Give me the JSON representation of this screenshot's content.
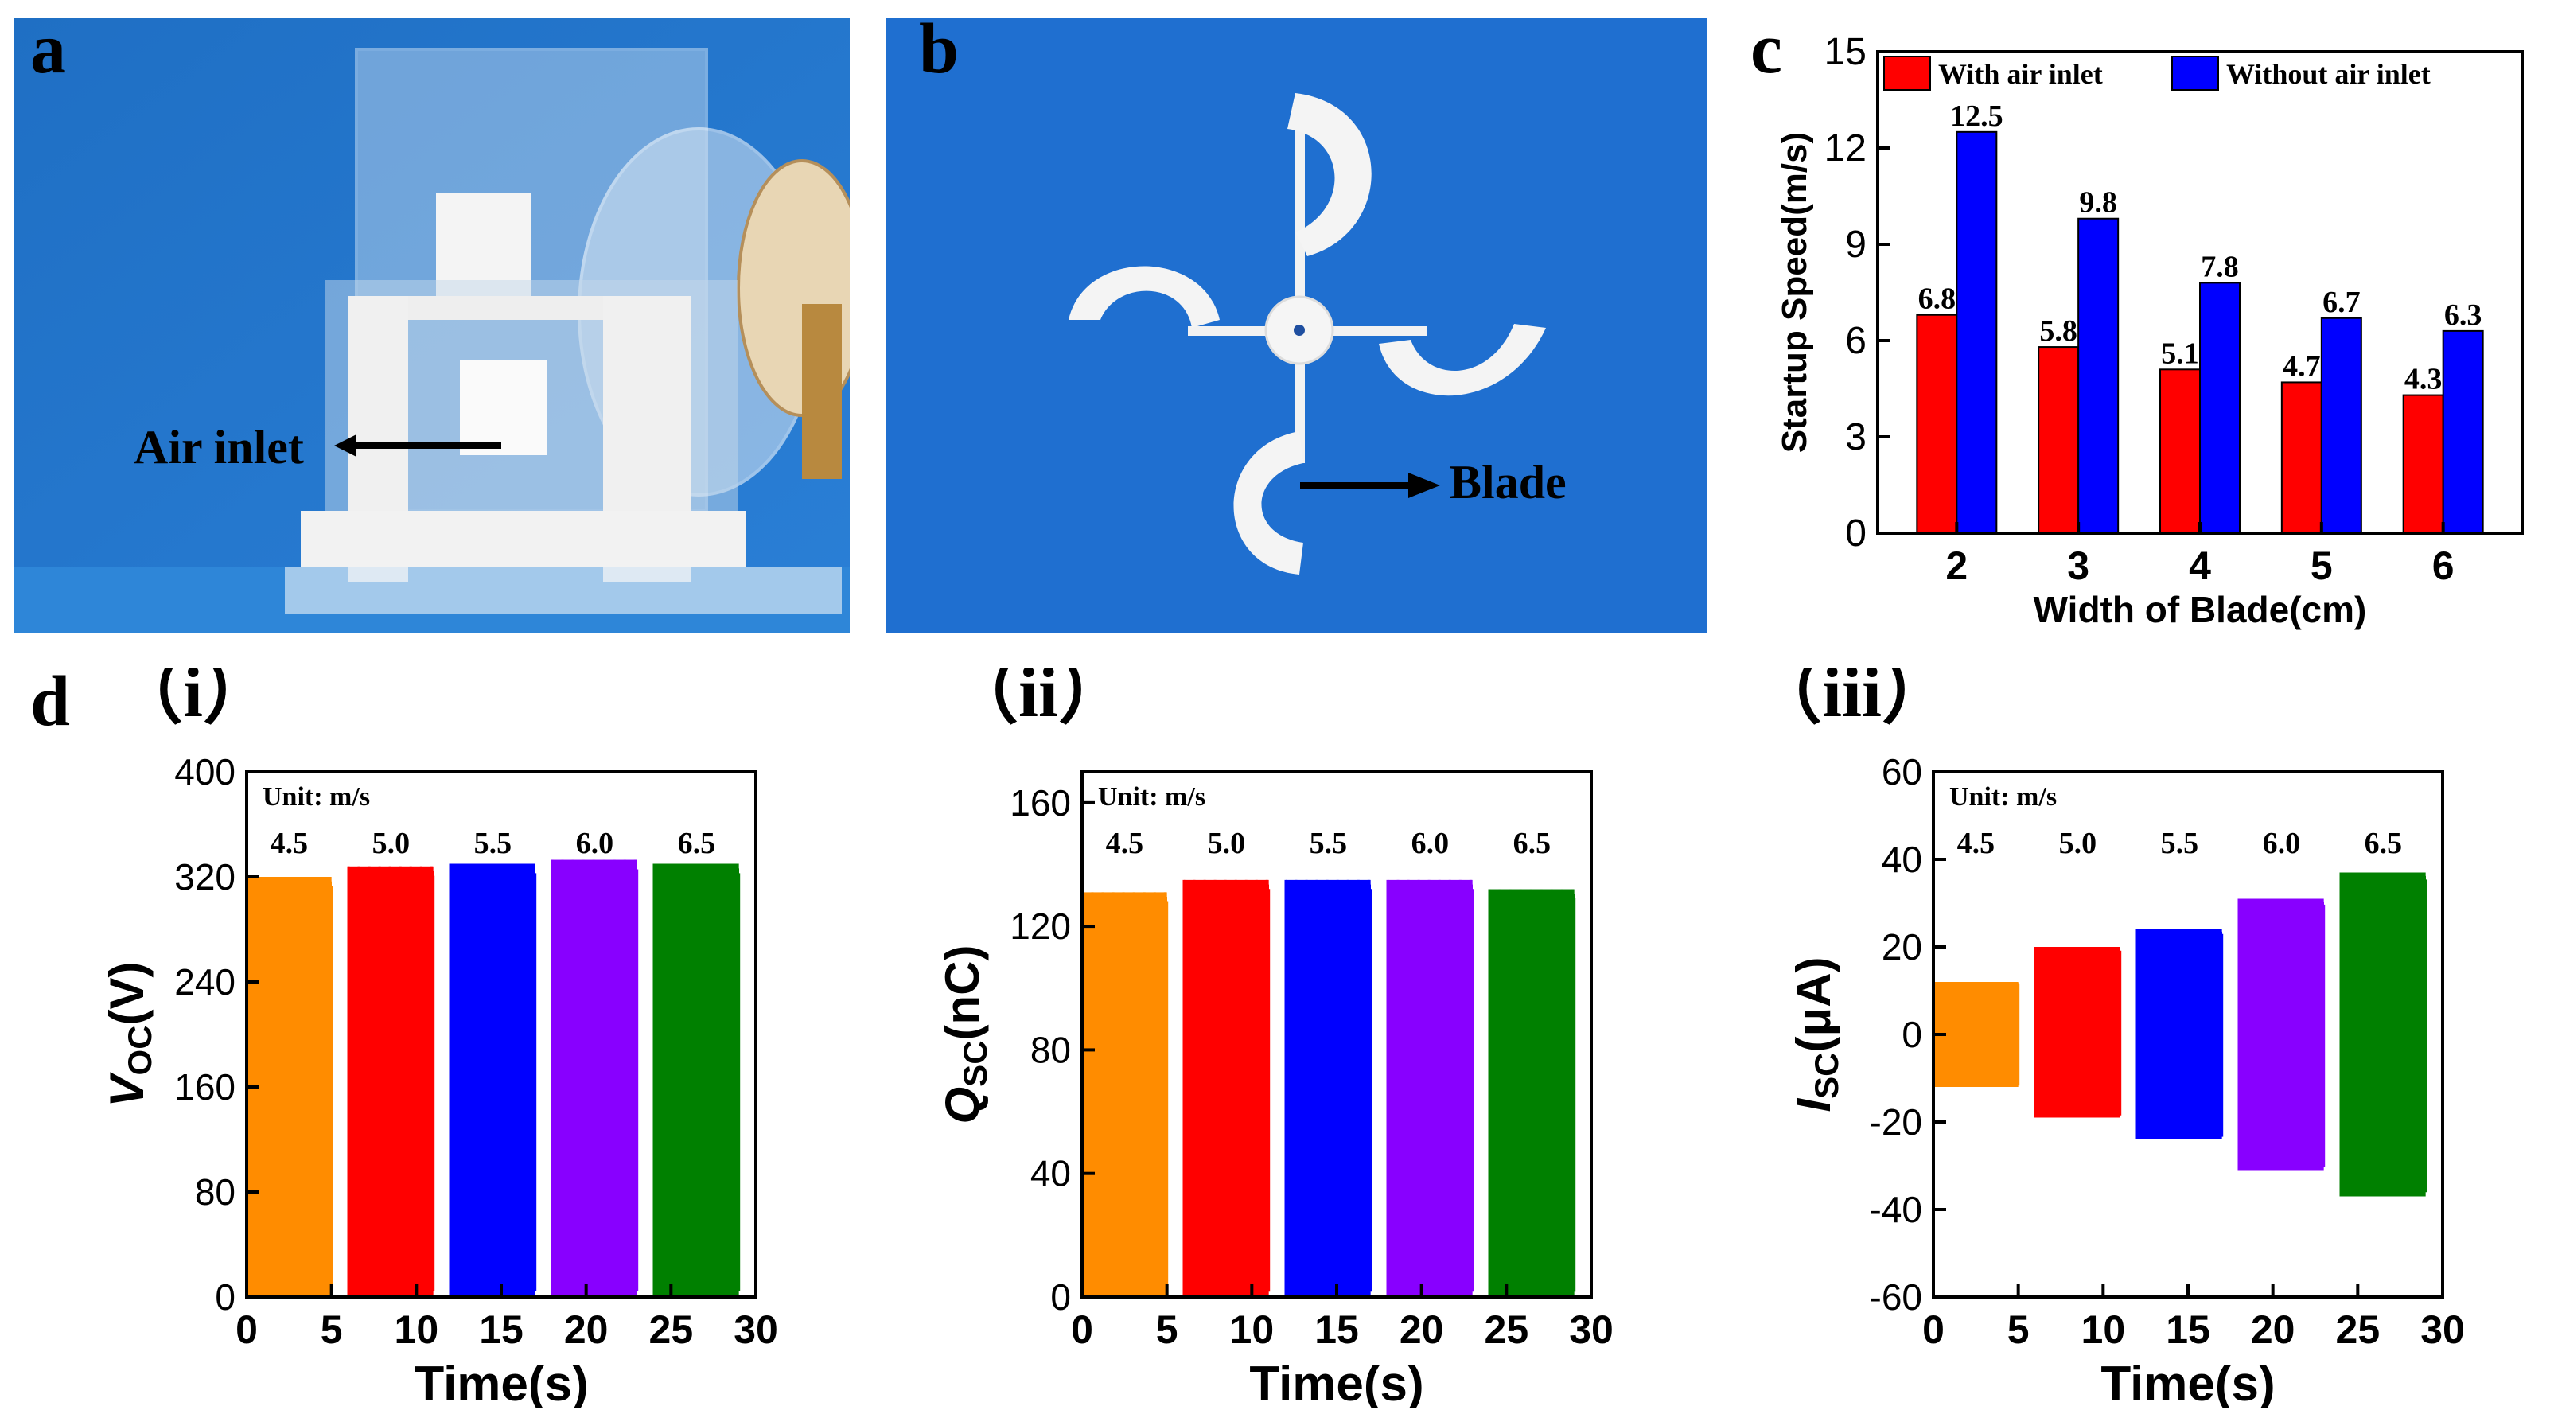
{
  "panel_labels": {
    "a": "a",
    "b": "b",
    "c": "c",
    "d": "d"
  },
  "photo_a": {
    "annotation": "Air inlet"
  },
  "photo_b": {
    "annotation": "Blade"
  },
  "colors": {
    "with_inlet": "#ff0000",
    "without_inlet": "#0000ff",
    "speed_series": [
      "#ff8c00",
      "#ff0000",
      "#0000ff",
      "#8800ff",
      "#008000"
    ]
  },
  "chart_data": [
    {
      "id": "c",
      "type": "bar",
      "title": "",
      "xlabel": "Width of Blade(cm)",
      "ylabel": "Startup Speed(m/s)",
      "categories": [
        "2",
        "3",
        "4",
        "5",
        "6"
      ],
      "ylim": [
        0,
        15
      ],
      "yticks": [
        "0",
        "3",
        "6",
        "9",
        "12",
        "15"
      ],
      "series": [
        {
          "name": "With air inlet",
          "values": [
            6.8,
            5.8,
            5.1,
            4.7,
            4.3
          ],
          "labels": [
            "6.8",
            "5.8",
            "5.1",
            "4.7",
            "4.3"
          ]
        },
        {
          "name": "Without air inlet",
          "values": [
            12.5,
            9.8,
            7.8,
            6.7,
            6.3
          ],
          "labels": [
            "12.5",
            "9.8",
            "7.8",
            "6.7",
            "6.3"
          ]
        }
      ],
      "legend": "top"
    },
    {
      "id": "d-i",
      "type": "area",
      "panel_tag": "（i）",
      "xlabel": "Time(s)",
      "ylabel_main": "V",
      "ylabel_sub": "OC",
      "ylabel_unit": "(V)",
      "xlim": [
        0,
        30
      ],
      "xticks": [
        "0",
        "5",
        "10",
        "15",
        "20",
        "25",
        "30"
      ],
      "ylim": [
        0,
        400
      ],
      "yticks": [
        "0",
        "80",
        "160",
        "240",
        "320",
        "400"
      ],
      "unit_note": "Unit:  m/s",
      "segments": [
        {
          "speed": "4.5",
          "x": [
            0,
            5
          ],
          "low": 0,
          "high": 320
        },
        {
          "speed": "5.0",
          "x": [
            6,
            11
          ],
          "low": 0,
          "high": 328
        },
        {
          "speed": "5.5",
          "x": [
            12,
            17
          ],
          "low": 0,
          "high": 330
        },
        {
          "speed": "6.0",
          "x": [
            18,
            23
          ],
          "low": 0,
          "high": 333
        },
        {
          "speed": "6.5",
          "x": [
            24,
            29
          ],
          "low": 0,
          "high": 330
        }
      ]
    },
    {
      "id": "d-ii",
      "type": "area",
      "panel_tag": "（ii）",
      "xlabel": "Time(s)",
      "ylabel_main": "Q",
      "ylabel_sub": "SC",
      "ylabel_unit": "(nC)",
      "xlim": [
        0,
        30
      ],
      "xticks": [
        "0",
        "5",
        "10",
        "15",
        "20",
        "25",
        "30"
      ],
      "ylim": [
        0,
        170
      ],
      "yticks": [
        "0",
        "40",
        "80",
        "120",
        "160"
      ],
      "unit_note": "Unit:  m/s",
      "segments": [
        {
          "speed": "4.5",
          "x": [
            0,
            5
          ],
          "low": 0,
          "high": 131
        },
        {
          "speed": "5.0",
          "x": [
            6,
            11
          ],
          "low": 0,
          "high": 135
        },
        {
          "speed": "5.5",
          "x": [
            12,
            17
          ],
          "low": 0,
          "high": 135
        },
        {
          "speed": "6.0",
          "x": [
            18,
            23
          ],
          "low": 0,
          "high": 135
        },
        {
          "speed": "6.5",
          "x": [
            24,
            29
          ],
          "low": 0,
          "high": 132
        }
      ]
    },
    {
      "id": "d-iii",
      "type": "area",
      "panel_tag": "（iii）",
      "xlabel": "Time(s)",
      "ylabel_main": "I",
      "ylabel_sub": "SC",
      "ylabel_unit": "(μA)",
      "xlim": [
        0,
        30
      ],
      "xticks": [
        "0",
        "5",
        "10",
        "15",
        "20",
        "25",
        "30"
      ],
      "ylim": [
        -60,
        60
      ],
      "yticks": [
        "-60",
        "-40",
        "-20",
        "0",
        "20",
        "40",
        "60"
      ],
      "unit_note": "Unit:  m/s",
      "segments": [
        {
          "speed": "4.5",
          "x": [
            0,
            5
          ],
          "low": -12,
          "high": 12
        },
        {
          "speed": "5.0",
          "x": [
            6,
            11
          ],
          "low": -19,
          "high": 20
        },
        {
          "speed": "5.5",
          "x": [
            12,
            17
          ],
          "low": -24,
          "high": 24
        },
        {
          "speed": "6.0",
          "x": [
            18,
            23
          ],
          "low": -31,
          "high": 31
        },
        {
          "speed": "6.5",
          "x": [
            24,
            29
          ],
          "low": -37,
          "high": 37
        }
      ]
    }
  ]
}
